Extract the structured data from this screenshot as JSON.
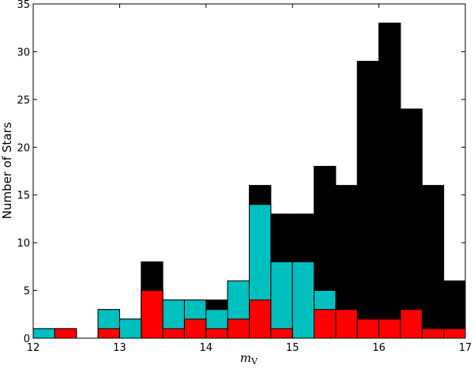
{
  "chart_data": {
    "type": "histogram",
    "x_label": {
      "main": "m",
      "sub": "V"
    },
    "y_label": "Number of Stars",
    "bins": [
      12,
      12.25,
      12.5,
      12.75,
      13,
      13.25,
      13.5,
      13.75,
      14,
      14.25,
      14.5,
      14.75,
      15,
      15.25,
      15.5,
      15.75,
      16,
      16.25,
      16.5,
      16.75,
      17
    ],
    "series": [
      {
        "color": "#000000",
        "values": [
          1,
          1,
          0,
          3,
          2,
          8,
          4,
          4,
          4,
          6,
          16,
          13,
          13,
          18,
          16,
          29,
          33,
          24,
          16,
          6
        ]
      },
      {
        "color": "#00bfbf",
        "values": [
          1,
          1,
          0,
          3,
          2,
          5,
          4,
          4,
          3,
          6,
          14,
          8,
          8,
          5,
          3,
          2,
          2,
          3,
          1,
          1
        ]
      },
      {
        "color": "#ff0000",
        "values": [
          0,
          1,
          0,
          1,
          0,
          5,
          1,
          2,
          1,
          2,
          4,
          1,
          0,
          3,
          3,
          2,
          2,
          3,
          1,
          1
        ]
      }
    ],
    "xlim": [
      12,
      17
    ],
    "xticks": [
      12,
      13,
      14,
      15,
      16,
      17
    ],
    "ylim": [
      0,
      35
    ],
    "yticks": [
      0,
      5,
      10,
      15,
      20,
      25,
      30,
      35
    ]
  }
}
